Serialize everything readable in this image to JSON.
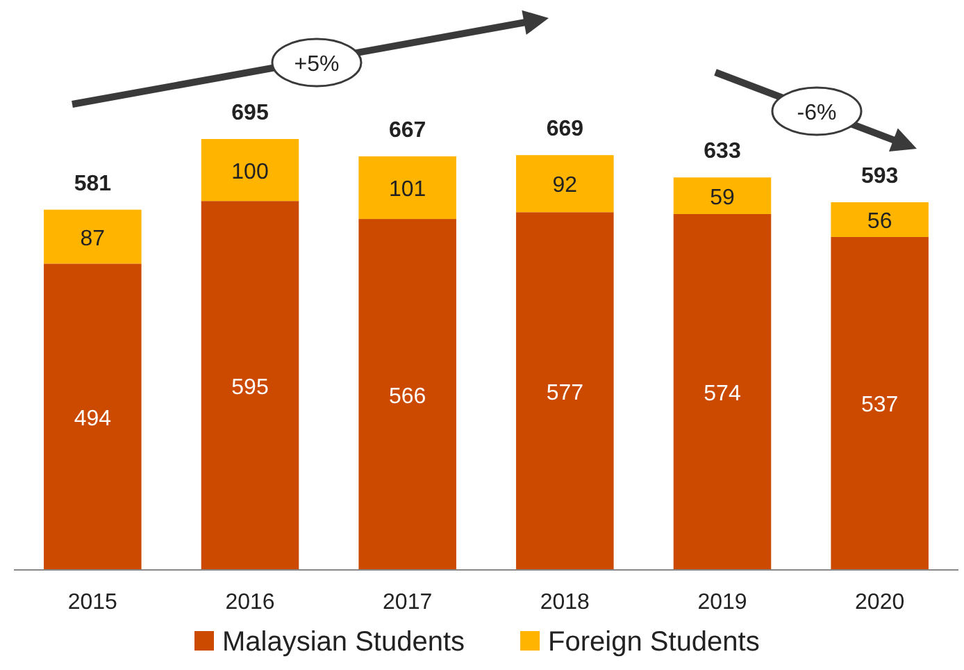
{
  "chart_data": {
    "type": "bar",
    "stacked": true,
    "categories": [
      "2015",
      "2016",
      "2017",
      "2018",
      "2019",
      "2020"
    ],
    "series": [
      {
        "name": "Malaysian Students",
        "color": "#cc4a00",
        "values": [
          494,
          595,
          566,
          577,
          574,
          537
        ]
      },
      {
        "name": "Foreign Students",
        "color": "#ffb400",
        "values": [
          87,
          100,
          101,
          92,
          59,
          56
        ]
      }
    ],
    "data_labels": true,
    "totals": [
      "581",
      "695",
      "667",
      "669",
      "633",
      "593"
    ],
    "annotations": [
      "+5%",
      "-6%"
    ],
    "legend": "bottom"
  }
}
